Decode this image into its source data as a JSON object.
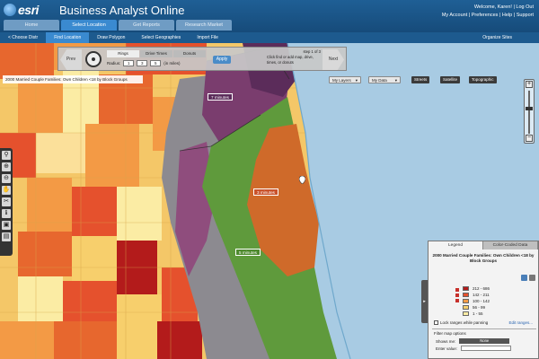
{
  "header": {
    "brand": "esri",
    "app_title": "Business Analyst Online",
    "user_links": [
      "Welcome, Karen!",
      "Log Out",
      "My Account",
      "Preferences",
      "Help",
      "Support"
    ],
    "tabs": [
      {
        "label": "Home",
        "active": false
      },
      {
        "label": "Select Location",
        "active": true
      },
      {
        "label": "Get Reports",
        "active": false
      },
      {
        "label": "Research Market",
        "active": false
      }
    ]
  },
  "subbar": {
    "items": [
      {
        "label": "< Choose Distr",
        "active": false
      },
      {
        "label": "Find Location",
        "active": true
      },
      {
        "label": "Draw Polygon",
        "active": false
      },
      {
        "label": "Select Geographies",
        "active": false
      },
      {
        "label": "Import File",
        "active": false
      }
    ],
    "right_label": "Organize Sites"
  },
  "find_panel": {
    "prev": "Prev",
    "next": "Next",
    "mode_tabs": [
      {
        "label": "Rings",
        "active": true
      },
      {
        "label": "Drive Times",
        "active": false
      },
      {
        "label": "Donuts",
        "active": false
      }
    ],
    "radius_label": "Radius:",
    "radius_values": [
      "1",
      "3",
      "5"
    ],
    "units": "(in miles)",
    "apply": "Apply",
    "step_title": "step 1 of 3",
    "step_text": "Click find or add map, drive, times, or donuts"
  },
  "map_title": "2000 Married Couple Families: Own Children <18 by Block Groups",
  "layers": {
    "my_layers": "My Layers",
    "my_data": "My Data",
    "basemaps": [
      "Streets",
      "Satellite",
      "Topographic"
    ]
  },
  "drive_labels": [
    "7 minutes",
    "3 minutes",
    "5 minutes"
  ],
  "tools": [
    "pin-icon",
    "zoom-in-icon",
    "zoom-out-icon",
    "hand-icon",
    "measure-icon",
    "identify-icon",
    "save-icon",
    "print-icon"
  ],
  "legend": {
    "tabs": [
      {
        "label": "Legend",
        "active": true
      },
      {
        "label": "Color-Coded Data",
        "active": false
      }
    ],
    "heading": "2000 Married Couple Families: Own Children <18 by Block Groups",
    "items": [
      {
        "range": "212 - 686",
        "color": "#b31b1b"
      },
      {
        "range": "142 - 211",
        "color": "#e5512d"
      },
      {
        "range": "100 - 142",
        "color": "#f39a45"
      },
      {
        "range": "56 - 99",
        "color": "#f7cf6c"
      },
      {
        "range": "1 - 55",
        "color": "#fbeca4"
      }
    ],
    "lock_label": "Lock ranges while panning",
    "edit_link": "Edit ranges...",
    "filter_title": "Filter map options",
    "filter_show": "Shows me:",
    "filter_show_value": "None",
    "filter_enter": "Enter value:"
  }
}
